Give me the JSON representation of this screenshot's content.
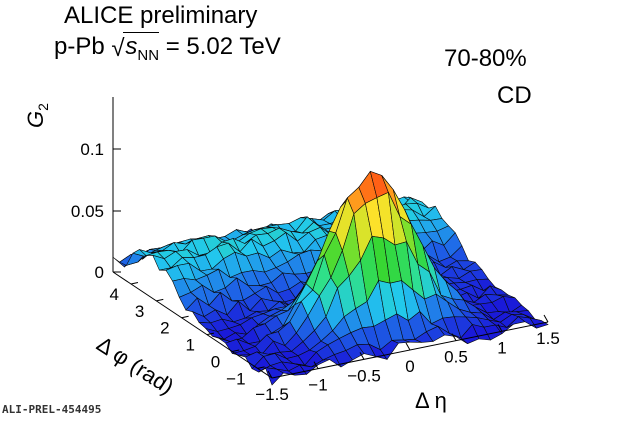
{
  "header": {
    "experiment": "ALICE preliminary",
    "system_prefix": "p-Pb",
    "energy_symbol": "s",
    "energy_subscript": "NN",
    "energy_value": "= 5.02 TeV",
    "centrality": "70-80%",
    "method": "CD",
    "figure_id": "ALI-PREL-454495"
  },
  "chart_data": {
    "type": "surface",
    "zlabel": "G",
    "zlabel_sub": "2",
    "xlabel": "Δ η",
    "ylabel": "Δ φ (rad)",
    "x_ticks": [
      -1.5,
      -1,
      -0.5,
      0,
      0.5,
      1,
      1.5
    ],
    "x_tick_labels": [
      "−1.5",
      "−1",
      "−0.5",
      "0",
      "0.5",
      "1",
      "1.5"
    ],
    "y_ticks": [
      -1,
      0,
      1,
      2,
      3,
      4
    ],
    "y_tick_labels": [
      "−1",
      "0",
      "1",
      "2",
      "3",
      "4"
    ],
    "z_ticks": [
      0,
      0.05,
      0.1
    ],
    "z_tick_labels": [
      "0",
      "0.05",
      "0.1"
    ],
    "xlim": [
      -1.6,
      1.6
    ],
    "ylim": [
      -1.57,
      4.71
    ],
    "zlim": [
      -0.005,
      0.14
    ],
    "grid_nx": 24,
    "grid_ny": 24,
    "colormap": [
      "#1a1ad9",
      "#1f6fe8",
      "#22c8ee",
      "#2fe08a",
      "#33d633",
      "#a8e62a",
      "#ffe12a",
      "#ff8c1a",
      "#ff2a10"
    ],
    "near_side_peak": {
      "dphi": 0,
      "deta": 0,
      "amplitude": 0.13,
      "sigma_eta": 0.42,
      "sigma_phi": 0.55
    },
    "away_side_ridge": {
      "dphi": 3.14,
      "amplitude": 0.035,
      "sigma_phi": 0.9
    },
    "noise_amplitude": 0.006
  }
}
